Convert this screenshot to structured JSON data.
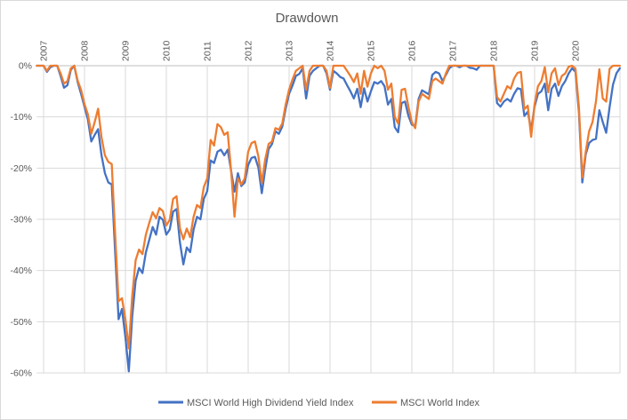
{
  "chart_data": {
    "type": "line",
    "title": "Drawdown",
    "xlabel": "",
    "ylabel": "",
    "interval": "monthly",
    "start_month": "2006-11",
    "end_month": "2021-02",
    "x_tick_labels": [
      "2007",
      "2008",
      "2009",
      "2010",
      "2011",
      "2012",
      "2013",
      "2014",
      "2015",
      "2016",
      "2017",
      "2018",
      "2019",
      "2020"
    ],
    "y_tick_labels": [
      "0%",
      "-10%",
      "-20%",
      "-30%",
      "-40%",
      "-50%",
      "-60%"
    ],
    "y_tick_values": [
      0,
      -10,
      -20,
      -30,
      -40,
      -50,
      -60
    ],
    "ylim": [
      -60,
      0
    ],
    "grid": true,
    "legend_position": "bottom",
    "series": [
      {
        "name": "MSCI World High Dividend Yield Index",
        "color": "#4472C4",
        "values": [
          0,
          0,
          0,
          -1.2,
          -0.3,
          0,
          0,
          -2,
          -4.3,
          -3.8,
          -0.8,
          0,
          -3.2,
          -5.5,
          -8,
          -10.5,
          -14.8,
          -13.5,
          -12.4,
          -17.5,
          -21,
          -22.8,
          -23.2,
          -36.5,
          -49.5,
          -47.5,
          -53,
          -59.7,
          -49,
          -42,
          -39.5,
          -40.5,
          -36.5,
          -34,
          -31.5,
          -33,
          -29.5,
          -30.1,
          -33,
          -32,
          -28.5,
          -28,
          -34.5,
          -38.8,
          -35.5,
          -36.4,
          -32,
          -29.5,
          -30,
          -26,
          -24.5,
          -18.5,
          -19,
          -16.8,
          -16.4,
          -17.5,
          -16.4,
          -20.5,
          -24.6,
          -21,
          -23.5,
          -22.8,
          -19.4,
          -18,
          -17.8,
          -19.9,
          -24.9,
          -20.3,
          -16.3,
          -15.3,
          -12.8,
          -13.3,
          -11.9,
          -8.4,
          -5.5,
          -3.9,
          -2,
          -1.6,
          -0.5,
          -6.4,
          -2,
          -1,
          -0.5,
          0,
          0,
          -1.5,
          -4.7,
          -1,
          -1.5,
          -2.2,
          -2.5,
          -3.8,
          -5,
          -6.4,
          -4.5,
          -8.1,
          -4.4,
          -7,
          -5,
          -3.2,
          -3.5,
          -3,
          -4,
          -7.6,
          -6.5,
          -12,
          -13,
          -7.3,
          -7,
          -9.8,
          -11.5,
          -11.8,
          -6.5,
          -4.8,
          -5.2,
          -5.6,
          -1.8,
          -1.2,
          -1.5,
          -3,
          -1.8,
          -0.5,
          0,
          0,
          -0.3,
          0,
          0,
          -0.4,
          -0.5,
          -0.8,
          0,
          0,
          0,
          0,
          0,
          -7.3,
          -8,
          -7,
          -6.5,
          -7,
          -5.5,
          -4.4,
          -4.6,
          -9.8,
          -9,
          -12.5,
          -8,
          -5.5,
          -5,
          -3.5,
          -8.7,
          -4.5,
          -3.5,
          -5.9,
          -4,
          -3,
          -1.5,
          -0.5,
          -1.2,
          -9,
          -22.8,
          -17.3,
          -15.1,
          -14.5,
          -14.3,
          -8.7,
          -11,
          -13.1,
          -8.1,
          -3.7,
          -1.5,
          -0.5
        ]
      },
      {
        "name": "MSCI World Index",
        "color": "#ED7D31",
        "values": [
          0,
          0,
          0,
          -1,
          0,
          0,
          0,
          -1.5,
          -3.5,
          -3,
          -0.5,
          0,
          -2.9,
          -4.7,
          -7.5,
          -9.5,
          -13.3,
          -11,
          -8.4,
          -14,
          -17.5,
          -18.8,
          -19.2,
          -33,
          -46,
          -45.4,
          -49.5,
          -55.2,
          -45,
          -38,
          -35.9,
          -36.8,
          -33,
          -30.7,
          -28.6,
          -29.8,
          -27.8,
          -28.4,
          -31.2,
          -30.1,
          -26,
          -25.5,
          -31.8,
          -33.9,
          -31.8,
          -33.5,
          -29.5,
          -27.2,
          -27.8,
          -23.7,
          -22,
          -14.5,
          -15.6,
          -11.4,
          -12,
          -13.5,
          -13,
          -20.5,
          -29.5,
          -22,
          -23.2,
          -22,
          -16.8,
          -15.1,
          -14.8,
          -17.7,
          -22.9,
          -18.3,
          -15.3,
          -14.8,
          -12.2,
          -12.5,
          -11.3,
          -7.6,
          -4.7,
          -2.7,
          -1,
          -0.5,
          0,
          -4.7,
          -1,
          0,
          0,
          0,
          0,
          -1,
          -4.3,
          0,
          0,
          0,
          0,
          -1,
          -2,
          -3.2,
          -1.5,
          -5.5,
          -1,
          -4.1,
          -1.5,
          0,
          -0.5,
          0,
          -1,
          -4.7,
          -3.5,
          -10,
          -11.3,
          -4.7,
          -4.5,
          -8,
          -11,
          -12.2,
          -7,
          -5.5,
          -6,
          -6.5,
          -3,
          -2.5,
          -3,
          -3.5,
          -1.5,
          0,
          0,
          0,
          0,
          0,
          0,
          0,
          0,
          0,
          0,
          0,
          0,
          0,
          0,
          -6.1,
          -7,
          -5.5,
          -4,
          -4.5,
          -2.5,
          -1.4,
          -1.2,
          -8.5,
          -7.8,
          -13.9,
          -7.5,
          -4,
          -3,
          -0.3,
          -5.2,
          -1.5,
          -0.5,
          -3.8,
          -2,
          -1.5,
          -0.2,
          0,
          -0.6,
          -8,
          -21.8,
          -16.8,
          -12.8,
          -11,
          -7,
          -0.7,
          -6.4,
          -7,
          -0.6,
          0,
          0,
          0
        ]
      }
    ]
  },
  "colors": {
    "text": "#595959",
    "gridline": "#D9D9D9",
    "zero_axis_line": "#BFBFBF",
    "background": "#FFFFFF",
    "border": "#D9D9D9"
  }
}
